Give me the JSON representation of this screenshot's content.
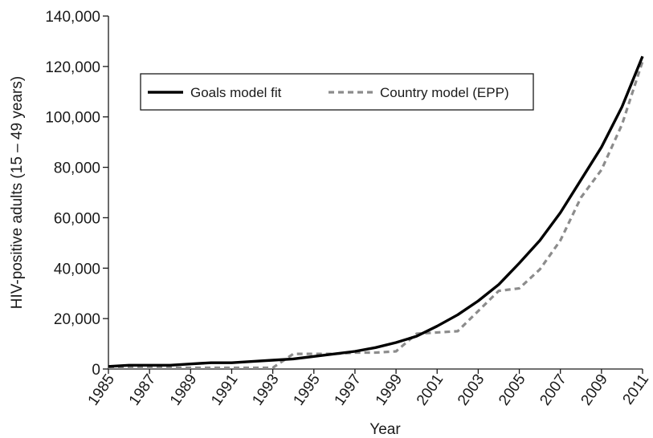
{
  "chart_data": {
    "type": "line",
    "title": "",
    "xlabel": "Year",
    "ylabel": "HIV-positive adults (15 – 49 years)",
    "xlim": [
      1985,
      2011
    ],
    "ylim": [
      0,
      140000
    ],
    "grid": false,
    "legend_position": "top-left",
    "y_ticks": [
      0,
      20000,
      40000,
      60000,
      80000,
      100000,
      120000,
      140000
    ],
    "y_tick_labels": [
      "0",
      "20,000",
      "40,000",
      "60,000",
      "80,000",
      "100,000",
      "120,000",
      "140,000"
    ],
    "x_ticks": [
      1985,
      1987,
      1989,
      1991,
      1993,
      1995,
      1997,
      1999,
      2001,
      2003,
      2005,
      2007,
      2009,
      2011
    ],
    "x_tick_labels": [
      "1985",
      "1987",
      "1989",
      "1991",
      "1993",
      "1995",
      "1997",
      "1999",
      "2001",
      "2003",
      "2005",
      "2007",
      "2009",
      "2011"
    ],
    "x": [
      1985,
      1986,
      1987,
      1988,
      1989,
      1990,
      1991,
      1992,
      1993,
      1994,
      1995,
      1996,
      1997,
      1998,
      1999,
      2000,
      2001,
      2002,
      2003,
      2004,
      2005,
      2006,
      2007,
      2008,
      2009,
      2010,
      2011
    ],
    "series": [
      {
        "name": "Goals model fit",
        "style": "solid",
        "color": "#000000",
        "values": [
          1000,
          1500,
          1500,
          1500,
          2000,
          2500,
          2500,
          3000,
          3500,
          4000,
          5000,
          6000,
          7000,
          8500,
          10500,
          13000,
          17000,
          21500,
          27000,
          33500,
          42000,
          51000,
          62000,
          75000,
          88000,
          104000,
          124000
        ]
      },
      {
        "name": "Country model (EPP)",
        "style": "dashed",
        "color": "#8c8c8c",
        "values": [
          500,
          500,
          500,
          500,
          500,
          500,
          500,
          500,
          500,
          6000,
          6000,
          6000,
          6500,
          6500,
          7000,
          14000,
          14500,
          15000,
          23000,
          31000,
          32000,
          39500,
          51000,
          68000,
          79000,
          97000,
          122000
        ]
      }
    ]
  }
}
